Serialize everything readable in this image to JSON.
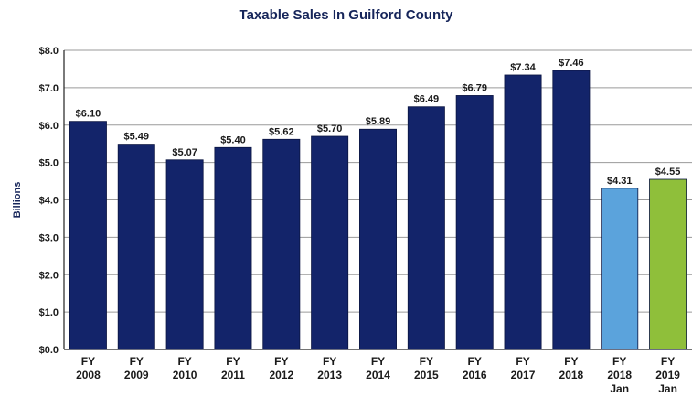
{
  "chart_data": {
    "type": "bar",
    "title": "Taxable Sales In Guilford County",
    "ylabel": "Billions",
    "xlabel": "",
    "ylim": [
      0,
      8
    ],
    "y_ticks": [
      "$0.0",
      "$1.0",
      "$2.0",
      "$3.0",
      "$4.0",
      "$5.0",
      "$6.0",
      "$7.0",
      "$8.0"
    ],
    "grid": true,
    "categories": [
      [
        "FY",
        "2008"
      ],
      [
        "FY",
        "2009"
      ],
      [
        "FY",
        "2010"
      ],
      [
        "FY",
        "2011"
      ],
      [
        "FY",
        "2012"
      ],
      [
        "FY",
        "2013"
      ],
      [
        "FY",
        "2014"
      ],
      [
        "FY",
        "2015"
      ],
      [
        "FY",
        "2016"
      ],
      [
        "FY",
        "2017"
      ],
      [
        "FY",
        "2018"
      ],
      [
        "FY",
        "2018",
        "Jan"
      ],
      [
        "FY",
        "2019",
        "Jan"
      ]
    ],
    "values": [
      6.1,
      5.49,
      5.07,
      5.4,
      5.62,
      5.7,
      5.89,
      6.49,
      6.79,
      7.34,
      7.46,
      4.31,
      4.55
    ],
    "data_labels": [
      "$6.10",
      "$5.49",
      "$5.07",
      "$5.40",
      "$5.62",
      "$5.70",
      "$5.89",
      "$6.49",
      "$6.79",
      "$7.34",
      "$7.46",
      "$4.31",
      "$4.55"
    ],
    "colors": [
      "#13246a",
      "#13246a",
      "#13246a",
      "#13246a",
      "#13246a",
      "#13246a",
      "#13246a",
      "#13246a",
      "#13246a",
      "#13246a",
      "#13246a",
      "#5ba3dc",
      "#8fbf3a"
    ]
  }
}
